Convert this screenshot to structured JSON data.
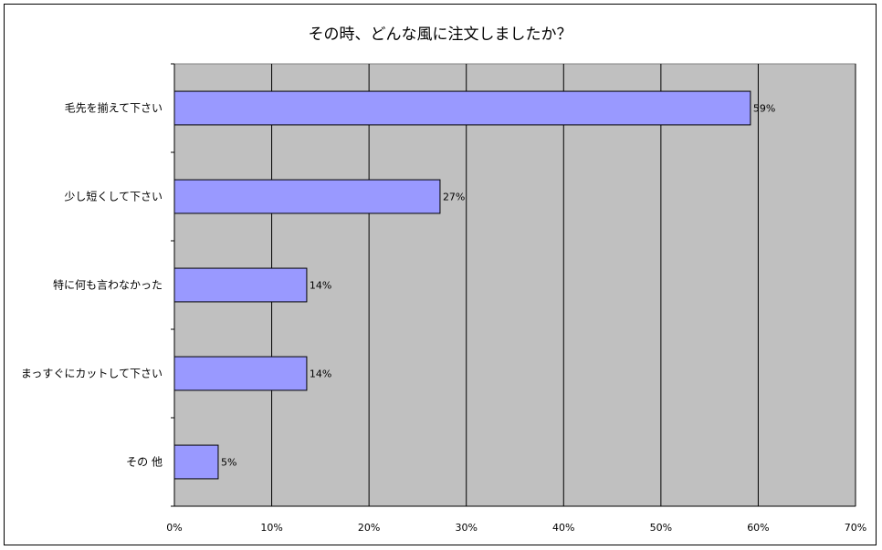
{
  "chart_data": {
    "type": "bar",
    "orientation": "horizontal",
    "title": "その時、どんな風に注文しましたか？",
    "xlabel": "",
    "ylabel": "",
    "categories": [
      "毛先を揃えて下さい",
      "少し短くして下さい",
      "特に何も言わなかった",
      "まっすぐにカットして下さい",
      "その 他"
    ],
    "values": [
      59.2,
      27.3,
      13.6,
      13.6,
      4.5
    ],
    "data_labels": [
      "59%",
      "27%",
      "14%",
      "14%",
      "5%"
    ],
    "xlim": [
      0,
      70
    ],
    "x_ticks": [
      0,
      10,
      20,
      30,
      40,
      50,
      60,
      70
    ],
    "x_tick_labels": [
      "0%",
      "10%",
      "20%",
      "30%",
      "40%",
      "50%",
      "60%",
      "70%"
    ],
    "grid": true,
    "legend": "none",
    "colors": {
      "plot_background": "#c0c0c0",
      "bar_fill": "#9999ff",
      "bar_stroke": "#000000",
      "gridline": "#000000"
    }
  }
}
